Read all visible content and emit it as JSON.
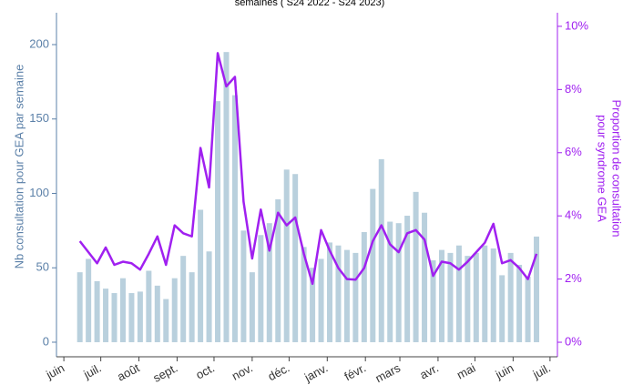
{
  "chart_data": {
    "type": "bar",
    "title": "semaines ( S24 2022 - S24 2023)",
    "ylabel": "Nb consultation pour GEA par semaine",
    "y2label": [
      "Proportion de consultation",
      "pour syndrome GEA"
    ],
    "x": [
      13,
      20,
      27,
      34,
      41,
      48,
      55,
      62,
      69,
      76,
      83,
      90,
      97,
      104,
      111,
      118,
      125,
      132,
      139,
      146,
      153,
      160,
      167,
      174,
      181,
      188,
      195,
      202,
      209,
      216,
      223,
      230,
      237,
      244,
      251,
      258,
      265,
      272,
      279,
      286,
      293,
      300,
      307,
      314,
      321,
      328,
      335,
      342,
      349,
      356,
      363,
      370,
      377,
      384
    ],
    "xlim": [
      -6,
      401
    ],
    "xticks": [
      {
        "value": 0,
        "label": "juin"
      },
      {
        "value": 30,
        "label": "juil."
      },
      {
        "value": 61,
        "label": "août"
      },
      {
        "value": 92,
        "label": "sept."
      },
      {
        "value": 122,
        "label": "oct."
      },
      {
        "value": 153,
        "label": "nov."
      },
      {
        "value": 183,
        "label": "déc."
      },
      {
        "value": 214,
        "label": "janv."
      },
      {
        "value": 245,
        "label": "févr."
      },
      {
        "value": 273,
        "label": "mars"
      },
      {
        "value": 304,
        "label": "avr."
      },
      {
        "value": 334,
        "label": "mai"
      },
      {
        "value": 365,
        "label": "juin"
      },
      {
        "value": 395,
        "label": "juil."
      }
    ],
    "ylim": [
      -9.8,
      221.4
    ],
    "yticks": [
      0,
      50,
      100,
      150,
      200
    ],
    "y2lim": [
      -0.46,
      10.43
    ],
    "y2ticks": [
      {
        "value": 0,
        "label": "0%"
      },
      {
        "value": 2,
        "label": "2%"
      },
      {
        "value": 4,
        "label": "4%"
      },
      {
        "value": 6,
        "label": "6%"
      },
      {
        "value": 8,
        "label": "8%"
      },
      {
        "value": 10,
        "label": "10%"
      }
    ],
    "series": [
      {
        "type": "bar",
        "color": "#b9d0dd",
        "values": [
          47,
          56,
          41,
          36,
          33,
          43,
          33,
          34,
          48,
          38,
          29,
          43,
          58,
          47,
          89,
          61,
          162,
          195,
          166,
          75,
          47,
          72,
          80,
          96,
          116,
          113,
          64,
          50,
          56,
          67,
          65,
          62,
          60,
          74,
          103,
          123,
          81,
          80,
          85,
          101,
          87,
          55,
          62,
          60,
          65,
          58,
          60,
          65,
          63,
          45,
          60,
          52,
          44,
          71
        ]
      },
      {
        "type": "line",
        "axis": "y2",
        "color": "#a020f0",
        "values": [
          3.2,
          2.85,
          2.5,
          3.0,
          2.45,
          2.55,
          2.5,
          2.3,
          2.8,
          3.35,
          2.45,
          3.7,
          3.45,
          3.35,
          6.15,
          4.9,
          9.15,
          8.1,
          8.4,
          4.45,
          2.65,
          4.2,
          2.9,
          4.1,
          3.7,
          3.95,
          2.8,
          1.85,
          3.55,
          2.9,
          2.35,
          2.0,
          1.98,
          2.35,
          3.2,
          3.7,
          3.1,
          2.85,
          3.45,
          3.55,
          3.25,
          2.1,
          2.55,
          2.5,
          2.3,
          2.55,
          2.85,
          3.15,
          3.75,
          2.5,
          2.6,
          2.35,
          2.0,
          2.8
        ]
      }
    ]
  }
}
